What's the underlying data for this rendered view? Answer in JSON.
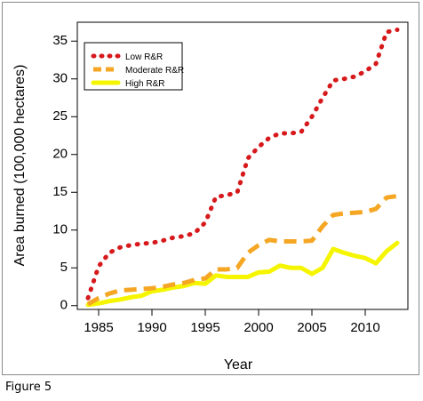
{
  "caption": "Figure 5",
  "chart_data": {
    "type": "line",
    "title": "",
    "xlabel": "Year",
    "ylabel": "Area burned (100,000 hectares)",
    "xlim": [
      1983,
      2014
    ],
    "ylim": [
      -0.5,
      37.5
    ],
    "xticks": [
      1985,
      1990,
      1995,
      2000,
      2005,
      2010
    ],
    "yticks": [
      0,
      5,
      10,
      15,
      20,
      25,
      30,
      35
    ],
    "grid": false,
    "legend": {
      "position": "top-left"
    },
    "series": [
      {
        "name": "Low R&R",
        "color": "#d7191c",
        "dash": "dotted",
        "x": [
          1984,
          1985,
          1986,
          1987,
          1988,
          1989,
          1990,
          1991,
          1992,
          1993,
          1994,
          1995,
          1996,
          1997,
          1998,
          1999,
          2000,
          2001,
          2002,
          2003,
          2004,
          2005,
          2006,
          2007,
          2008,
          2009,
          2010,
          2011,
          2012,
          2013
        ],
        "y": [
          1.0,
          5.2,
          7.0,
          7.7,
          8.0,
          8.2,
          8.3,
          8.6,
          9.0,
          9.2,
          9.6,
          11.0,
          14.4,
          14.6,
          15.0,
          19.5,
          21.0,
          22.2,
          22.8,
          22.8,
          23.0,
          25.0,
          27.5,
          29.8,
          30.0,
          30.3,
          31.0,
          32.0,
          36.2,
          36.5
        ]
      },
      {
        "name": "Moderate R&R",
        "color": "#f5a623",
        "dash": "dashed",
        "x": [
          1984,
          1985,
          1986,
          1987,
          1988,
          1989,
          1990,
          1991,
          1992,
          1993,
          1994,
          1995,
          1996,
          1997,
          1998,
          1999,
          2000,
          2001,
          2002,
          2003,
          2004,
          2005,
          2006,
          2007,
          2008,
          2009,
          2010,
          2011,
          2012,
          2013
        ],
        "y": [
          0.2,
          1.0,
          1.6,
          2.0,
          2.1,
          2.2,
          2.3,
          2.5,
          2.8,
          3.0,
          3.4,
          3.6,
          4.8,
          4.8,
          5.0,
          7.0,
          8.0,
          8.7,
          8.5,
          8.5,
          8.5,
          8.6,
          10.5,
          12.0,
          12.2,
          12.3,
          12.4,
          12.8,
          14.3,
          14.5
        ]
      },
      {
        "name": "High R&R",
        "color": "#f5f500",
        "dash": "solid",
        "x": [
          1984,
          1985,
          1986,
          1987,
          1988,
          1989,
          1990,
          1991,
          1992,
          1993,
          1994,
          1995,
          1996,
          1997,
          1998,
          1999,
          2000,
          2001,
          2002,
          2003,
          2004,
          2005,
          2006,
          2007,
          2008,
          2009,
          2010,
          2011,
          2012,
          2013
        ],
        "y": [
          0.1,
          0.3,
          0.6,
          0.8,
          1.1,
          1.3,
          1.9,
          2.1,
          2.4,
          2.6,
          3.0,
          2.9,
          4.0,
          3.8,
          3.8,
          3.8,
          4.4,
          4.5,
          5.3,
          5.0,
          5.0,
          4.2,
          5.0,
          7.5,
          7.0,
          6.6,
          6.3,
          5.6,
          7.2,
          8.3
        ]
      }
    ]
  }
}
